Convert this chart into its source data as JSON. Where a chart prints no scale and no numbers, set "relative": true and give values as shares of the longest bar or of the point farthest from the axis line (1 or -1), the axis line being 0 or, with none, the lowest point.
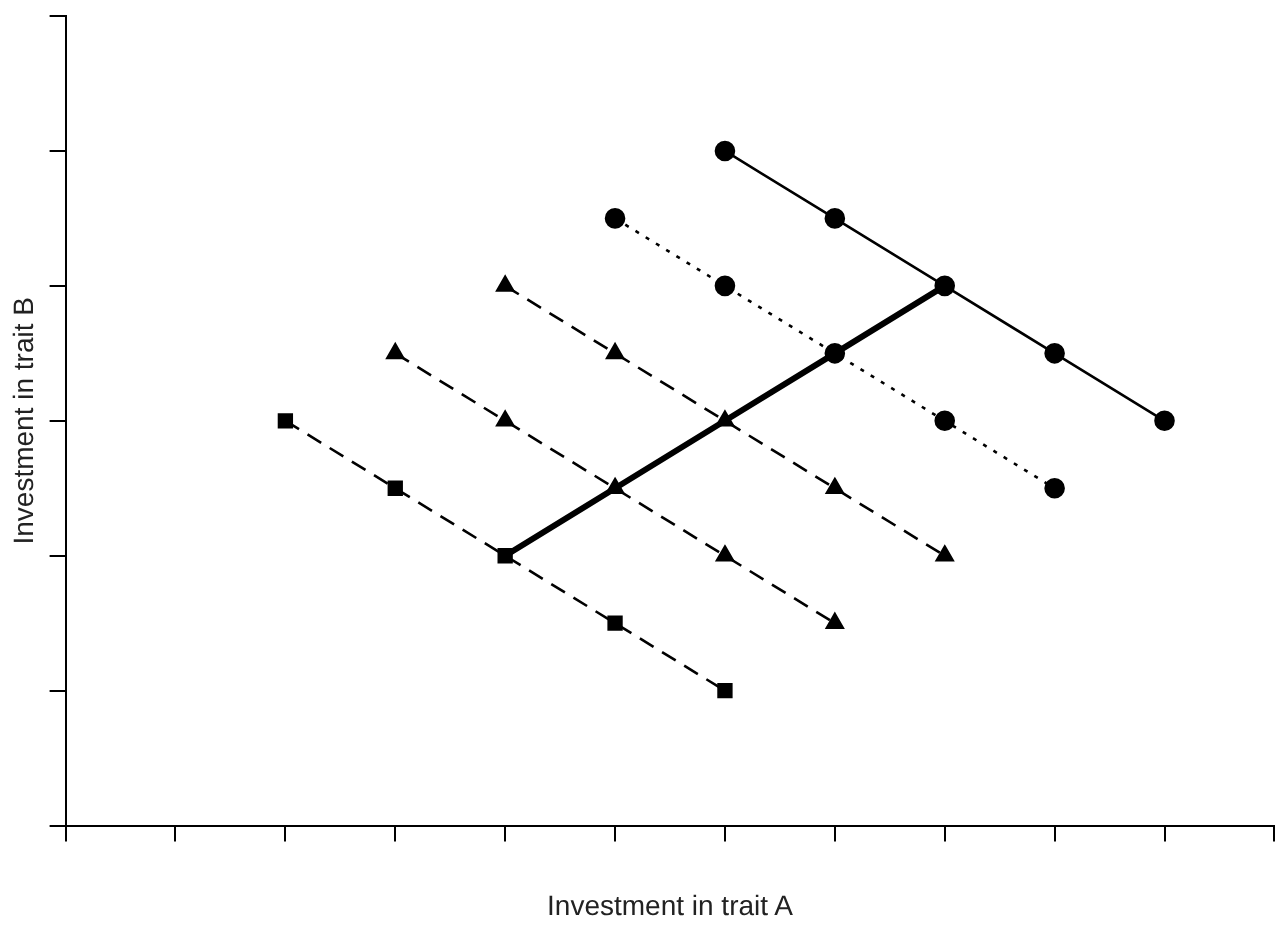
{
  "chart_data": {
    "type": "line",
    "xlabel": "Investment in trait A",
    "ylabel": "Investment in trait B",
    "relative": true,
    "grid": false,
    "legend": false,
    "categories": [
      null,
      null,
      null,
      null,
      null,
      null,
      null,
      null,
      null,
      null,
      null,
      null
    ],
    "series": [
      {
        "color": "#000000",
        "marker": "circle",
        "line_style": "solid",
        "values": [
          null,
          null,
          null,
          null,
          null,
          null,
          1,
          0.9,
          0.8,
          0.7,
          0.6,
          null
        ]
      },
      {
        "color": "#000000",
        "marker": "circle",
        "line_style": "dotted",
        "values": [
          null,
          null,
          null,
          null,
          null,
          0.9,
          0.8,
          0.7,
          0.6,
          0.5,
          null,
          null
        ]
      },
      {
        "color": "#000000",
        "marker": "triangle",
        "line_style": "dashed",
        "values": [
          null,
          null,
          null,
          null,
          0.8,
          0.7,
          0.6,
          0.5,
          0.4,
          null,
          null,
          null
        ]
      },
      {
        "color": "#000000",
        "marker": "triangle",
        "line_style": "dashed",
        "values": [
          null,
          null,
          null,
          0.7,
          0.6,
          0.5,
          0.4,
          0.3,
          null,
          null,
          null,
          null
        ]
      },
      {
        "color": "#000000",
        "marker": "square",
        "line_style": "dashed",
        "values": [
          null,
          null,
          0.6,
          0.5,
          0.4,
          0.3,
          0.2,
          null,
          null,
          null,
          null,
          null
        ]
      },
      {
        "color": "#000000",
        "marker": "none",
        "line_style": "solid",
        "values": [
          null,
          null,
          null,
          null,
          0.4,
          0.5,
          0.6,
          0.7,
          0.8,
          null,
          null,
          null
        ]
      }
    ]
  }
}
